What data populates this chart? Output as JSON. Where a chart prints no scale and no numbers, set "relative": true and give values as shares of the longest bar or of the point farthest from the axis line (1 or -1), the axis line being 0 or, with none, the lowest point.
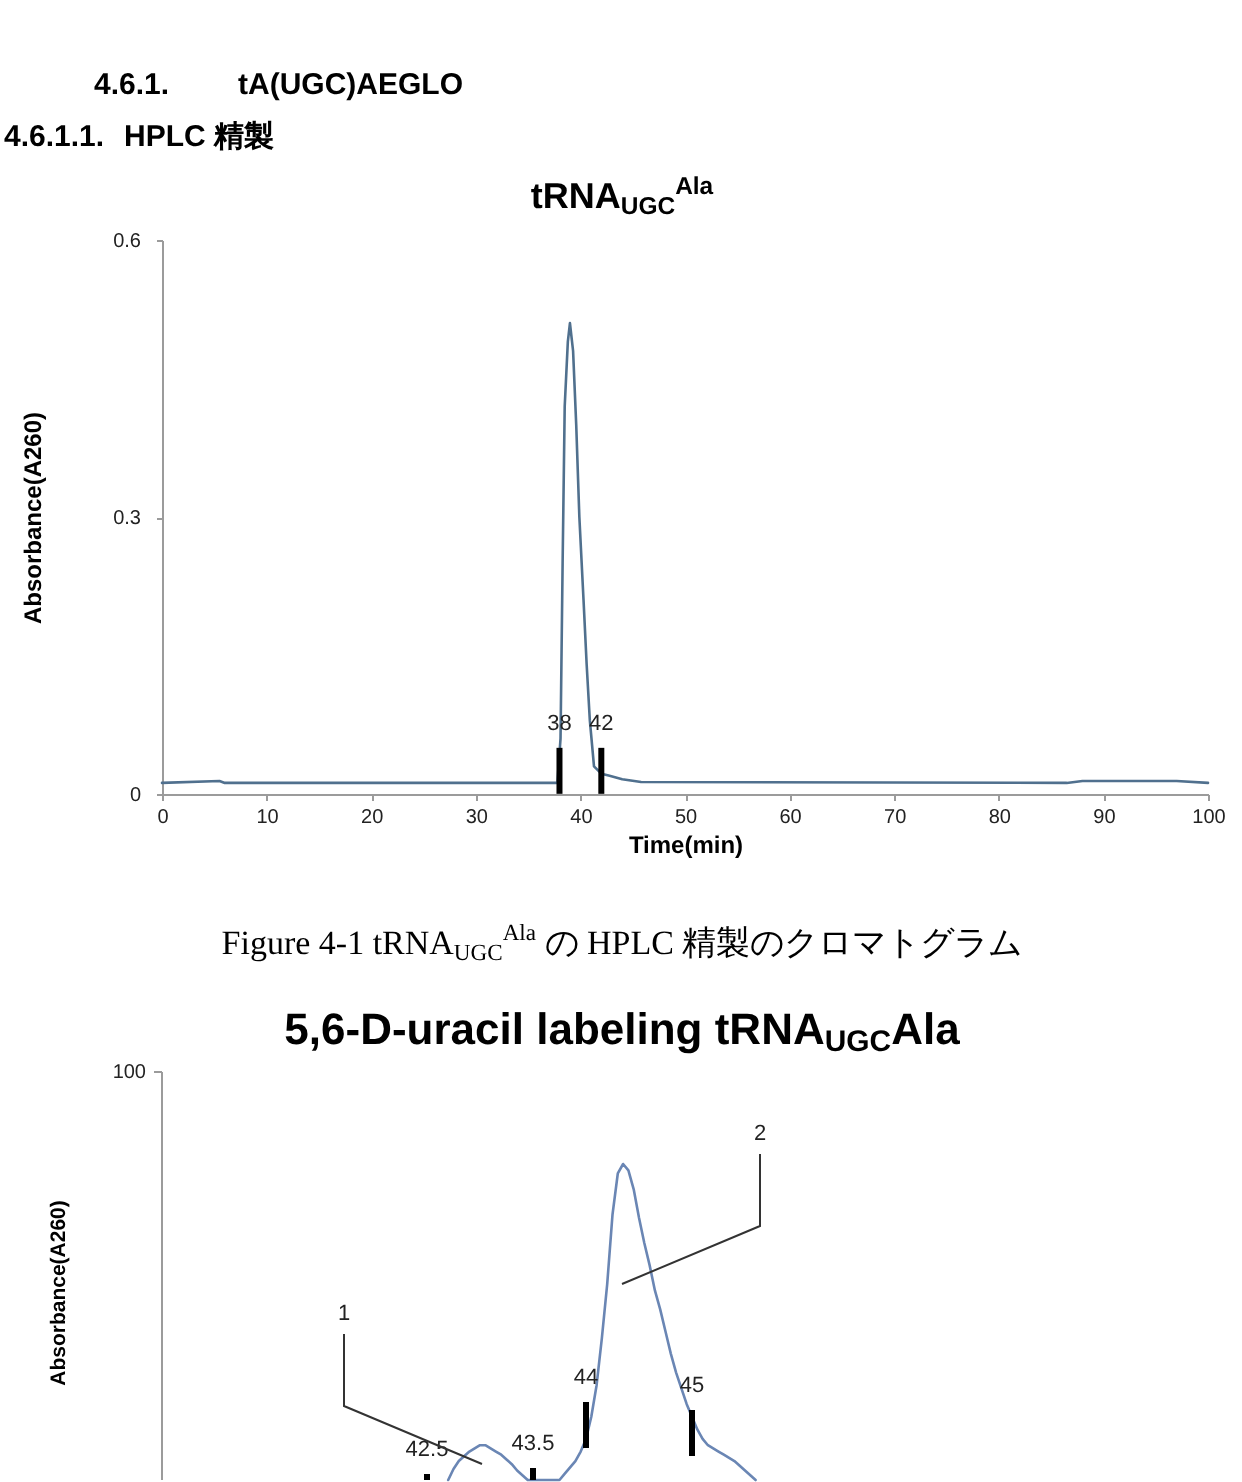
{
  "chart_data": [
    {
      "type": "other",
      "title": "4.6.1. tA(UGC)AEGLO",
      "subtitle": "4.6.1.1. HPLC 精製"
    },
    {
      "type": "line",
      "title": "tRNA$_{UGC}$$^{Ala}$",
      "xlabel": "Time(min)",
      "ylabel": "Absorbance(A260)",
      "x": [
        0,
        5.5,
        6,
        37.8,
        38.1,
        38.3,
        38.5,
        38.8,
        39.0,
        39.3,
        39.6,
        39.9,
        40.3,
        40.6,
        40.9,
        41.3,
        42.0,
        42.7,
        44.0,
        45.8,
        86.5,
        88,
        97,
        100
      ],
      "series": [
        {
          "color": "#50708e",
          "values": [
            0.012,
            0.014,
            0.012,
            0.012,
            0.06,
            0.25,
            0.42,
            0.49,
            0.51,
            0.48,
            0.4,
            0.3,
            0.21,
            0.14,
            0.08,
            0.03,
            0.022,
            0.02,
            0.016,
            0.013,
            0.012,
            0.014,
            0.014,
            0.012
          ]
        }
      ],
      "xlim": [
        0,
        100
      ],
      "ylim": [
        0,
        0.6
      ],
      "xticks": [
        0,
        10,
        20,
        30,
        40,
        50,
        60,
        70,
        80,
        90,
        100
      ],
      "yticks": [
        0,
        0.3,
        0.6
      ],
      "annotations": [
        {
          "text": "38",
          "x": 38,
          "y": 0.05
        },
        {
          "text": "42",
          "x": 42,
          "y": 0.05
        },
        "Figure 4-1 tRNA$_{UGC}$$^{Ala}$ の HPLC 精製のクロマトグラム"
      ]
    },
    {
      "type": "line",
      "title": "5,6-D-uracil labeling tRNA$_{UGC}$Ala",
      "ylabel": "Absorbance(A260)",
      "relative": true,
      "categories": [
        null,
        null,
        null,
        null,
        null,
        null,
        null,
        null,
        null,
        null,
        null,
        null,
        null,
        null,
        null,
        null,
        null,
        null,
        null,
        null,
        null,
        null,
        null,
        null,
        null,
        null,
        null,
        null,
        null,
        null,
        null,
        null,
        null,
        null,
        null,
        null,
        null,
        null,
        null,
        null,
        null,
        null,
        null,
        null,
        null,
        null,
        null,
        null,
        null,
        null,
        null,
        null,
        null,
        null,
        null,
        null,
        null,
        null,
        null
      ],
      "series": [
        {
          "color": "#6a86b4",
          "values": [
            0,
            0.035,
            0.06,
            0.075,
            0.09,
            0.1,
            0.11,
            0.11,
            0.1,
            0.09,
            0.08,
            0.065,
            0.05,
            0.03,
            0.015,
            0,
            0,
            0,
            0,
            0,
            0,
            0,
            0.02,
            0.04,
            0.06,
            0.09,
            0.13,
            0.2,
            0.3,
            0.45,
            0.62,
            0.84,
            0.97,
            1,
            0.98,
            0.92,
            0.83,
            0.75,
            0.68,
            0.6,
            0.54,
            0.47,
            0.4,
            0.34,
            0.29,
            0.24,
            0.2,
            0.16,
            0.13,
            0.11,
            0.1,
            0.09,
            0.08,
            0.07,
            0.06,
            0.045,
            0.03,
            0.015,
            0
          ]
        }
      ],
      "annotations": [
        "100",
        "42.5",
        "43.5",
        "44",
        "45",
        "1",
        "2"
      ]
    }
  ]
}
